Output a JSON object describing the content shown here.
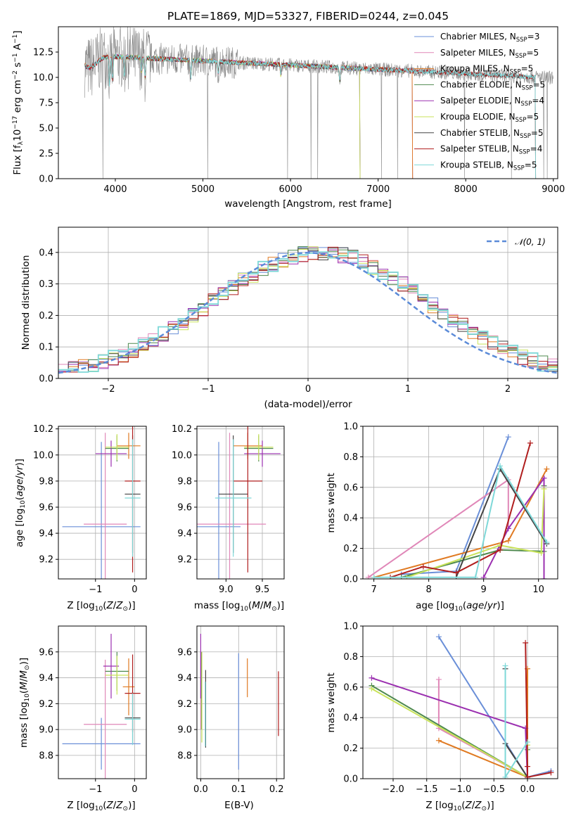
{
  "colors": {
    "Chabrier MILES": "#6a8fd8",
    "Salpeter MILES": "#e087b8",
    "Kroupa MILES": "#e07a22",
    "Chabrier ELODIE": "#4f8a4f",
    "Salpeter ELODIE": "#9b30b0",
    "Kroupa ELODIE": "#c9e35a",
    "Chabrier STELIB": "#444444",
    "Salpeter STELIB": "#b01e1e",
    "Kroupa STELIB": "#7ed8d8"
  },
  "chart_data": [
    {
      "id": "spectrum",
      "type": "line",
      "title": "PLATE=1869, MJD=53327, FIBERID=0244, z=0.045",
      "xlabel": "wavelength [Angstrom, rest frame]",
      "ylabel": "Flux [fλ10⁻¹⁷ erg cm⁻² s⁻¹ A⁻¹]",
      "xlim": [
        3350,
        9050
      ],
      "ylim": [
        0,
        15
      ],
      "xticks": [
        "4000",
        "5000",
        "6000",
        "7000",
        "8000",
        "9000"
      ],
      "yticks": [
        "0.0",
        "2.5",
        "5.0",
        "7.5",
        "10.0",
        "12.5"
      ],
      "legend_position": "upper right",
      "legend": [
        {
          "series": "Chabrier MILES",
          "text": "Chabrier MILES, N",
          "sub": "SSP",
          "suffix": "=3"
        },
        {
          "series": "Salpeter MILES",
          "text": "Salpeter MILES, N",
          "sub": "SSP",
          "suffix": "=5"
        },
        {
          "series": "Kroupa MILES",
          "text": "Kroupa MILES, N",
          "sub": "SSP",
          "suffix": "=5"
        },
        {
          "series": "Chabrier ELODIE",
          "text": "Chabrier ELODIE, N",
          "sub": "SSP",
          "suffix": "=5"
        },
        {
          "series": "Salpeter ELODIE",
          "text": "Salpeter ELODIE, N",
          "sub": "SSP",
          "suffix": "=4"
        },
        {
          "series": "Kroupa ELODIE",
          "text": "Kroupa ELODIE, N",
          "sub": "SSP",
          "suffix": "=5"
        },
        {
          "series": "Chabrier STELIB",
          "text": "Chabrier STELIB, N",
          "sub": "SSP",
          "suffix": "=5"
        },
        {
          "series": "Salpeter STELIB",
          "text": "Salpeter STELIB, N",
          "sub": "SSP",
          "suffix": "=4"
        },
        {
          "series": "Kroupa STELIB",
          "text": "Kroupa STELIB, N",
          "sub": "SSP",
          "suffix": "=5"
        }
      ],
      "data_color": "#888888",
      "data_range": [
        3650,
        9000
      ],
      "model_ranges": {
        "Chabrier MILES": [
          3650,
          7400
        ],
        "Salpeter MILES": [
          3650,
          7400
        ],
        "Kroupa MILES": [
          3650,
          7400
        ],
        "Chabrier ELODIE": [
          3890,
          6800
        ],
        "Salpeter ELODIE": [
          3890,
          6800
        ],
        "Kroupa ELODIE": [
          3890,
          6800
        ],
        "Chabrier STELIB": [
          3650,
          8800
        ],
        "Salpeter STELIB": [
          3650,
          8800
        ],
        "Kroupa STELIB": [
          3650,
          8800
        ]
      }
    },
    {
      "id": "residuals",
      "type": "histogram",
      "xlabel": "(data-model)/error",
      "ylabel": "Normed distribution",
      "xlim": [
        -2.5,
        2.5
      ],
      "ylim": [
        0,
        0.48
      ],
      "xticks": [
        "−2",
        "−1",
        "0",
        "1",
        "2"
      ],
      "yticks": [
        "0.0",
        "0.1",
        "0.2",
        "0.3",
        "0.4"
      ],
      "bin_width": 0.1,
      "grid": true,
      "legend_position": "upper right",
      "reference": {
        "label": "𝒩(0, 1)",
        "mean": 0,
        "sigma": 1,
        "color": "#5b8bd8"
      }
    },
    {
      "id": "age_vs_z",
      "type": "errorbar",
      "xlabel": "Z [log₁₀(Z/Z⊙)]",
      "ylabel": "age  [log₁₀(age/yr)]",
      "xlim": [
        -1.95,
        0.3
      ],
      "ylim": [
        9.05,
        10.22
      ],
      "xticks": [
        -1,
        0
      ],
      "yticks": [
        9.2,
        9.4,
        9.6,
        9.8,
        10.0,
        10.2
      ],
      "grid": true,
      "points": [
        {
          "series": "Chabrier MILES",
          "x": -0.85,
          "xerr": 1.0,
          "y": 9.45,
          "yerr": 0.65
        },
        {
          "series": "Salpeter MILES",
          "x": -0.75,
          "xerr": 0.55,
          "y": 9.47,
          "yerr": 0.7
        },
        {
          "series": "Kroupa MILES",
          "x": -0.15,
          "xerr": 0.3,
          "y": 10.07,
          "yerr": 0.1
        },
        {
          "series": "Chabrier ELODIE",
          "x": -0.45,
          "xerr": 0.3,
          "y": 10.05,
          "yerr": 0.1
        },
        {
          "series": "Salpeter ELODIE",
          "x": -0.6,
          "xerr": 0.4,
          "y": 10.01,
          "yerr": 0.1
        },
        {
          "series": "Kroupa ELODIE",
          "x": -0.45,
          "xerr": 0.3,
          "y": 10.06,
          "yerr": 0.1
        },
        {
          "series": "Chabrier STELIB",
          "x": -0.05,
          "xerr": 0.2,
          "y": 9.7,
          "yerr": 0.45
        },
        {
          "series": "Salpeter STELIB",
          "x": -0.05,
          "xerr": 0.2,
          "y": 9.8,
          "yerr": 0.7
        },
        {
          "series": "Kroupa STELIB",
          "x": -0.05,
          "xerr": 0.2,
          "y": 9.67,
          "yerr": 0.45
        }
      ]
    },
    {
      "id": "age_vs_mass",
      "type": "errorbar",
      "xlabel": "mass [log₁₀(M/M⊙)]",
      "ylabel": "",
      "xlim": [
        8.6,
        9.8
      ],
      "ylim": [
        9.05,
        10.22
      ],
      "xticks": [
        9.0,
        9.5
      ],
      "yticks": [
        9.2,
        9.4,
        9.6,
        9.8,
        10.0,
        10.2
      ],
      "grid": true,
      "points": [
        {
          "series": "Chabrier MILES",
          "x": 8.9,
          "xerr": 0.3,
          "y": 9.45,
          "yerr": 0.65
        },
        {
          "series": "Salpeter MILES",
          "x": 9.05,
          "xerr": 0.5,
          "y": 9.47,
          "yerr": 0.7
        },
        {
          "series": "Kroupa MILES",
          "x": 9.3,
          "xerr": 0.2,
          "y": 10.07,
          "yerr": 0.1
        },
        {
          "series": "Chabrier ELODIE",
          "x": 9.45,
          "xerr": 0.2,
          "y": 10.05,
          "yerr": 0.1
        },
        {
          "series": "Salpeter ELODIE",
          "x": 9.5,
          "xerr": 0.25,
          "y": 10.01,
          "yerr": 0.1
        },
        {
          "series": "Kroupa ELODIE",
          "x": 9.45,
          "xerr": 0.2,
          "y": 10.06,
          "yerr": 0.1
        },
        {
          "series": "Chabrier STELIB",
          "x": 9.1,
          "xerr": 0.2,
          "y": 9.7,
          "yerr": 0.45
        },
        {
          "series": "Salpeter STELIB",
          "x": 9.3,
          "xerr": 0.2,
          "y": 9.8,
          "yerr": 0.7
        },
        {
          "series": "Kroupa STELIB",
          "x": 9.1,
          "xerr": 0.25,
          "y": 9.67,
          "yerr": 0.45
        }
      ]
    },
    {
      "id": "weight_vs_age",
      "type": "line",
      "xlabel": "age  [log₁₀(age/yr)]",
      "ylabel": "mass weight",
      "xlim": [
        6.8,
        10.35
      ],
      "ylim": [
        0,
        1.0
      ],
      "xticks": [
        7,
        8,
        9,
        10
      ],
      "yticks": [
        0.0,
        0.2,
        0.4,
        0.6,
        0.8,
        1.0
      ],
      "grid": true,
      "series": [
        {
          "name": "Chabrier MILES",
          "x": [
            7.5,
            8.5,
            9.45
          ],
          "y": [
            0.03,
            0.05,
            0.93
          ]
        },
        {
          "name": "Salpeter MILES",
          "x": [
            6.9,
            9.45,
            9.45
          ],
          "y": [
            0.01,
            0.65,
            0.33
          ]
        },
        {
          "name": "Kroupa MILES",
          "x": [
            7.0,
            9.45,
            10.15
          ],
          "y": [
            0.01,
            0.25,
            0.72
          ]
        },
        {
          "name": "Chabrier ELODIE",
          "x": [
            7.5,
            9.3,
            10.1,
            10.1
          ],
          "y": [
            0.01,
            0.19,
            0.18,
            0.61
          ]
        },
        {
          "name": "Salpeter ELODIE",
          "x": [
            9.0,
            9.45,
            10.1,
            10.1
          ],
          "y": [
            0.01,
            0.33,
            0.66,
            0.0
          ]
        },
        {
          "name": "Kroupa ELODIE",
          "x": [
            7.6,
            9.3,
            10.05,
            10.1
          ],
          "y": [
            0.01,
            0.22,
            0.17,
            0.59
          ]
        },
        {
          "name": "Chabrier STELIB",
          "x": [
            8.5,
            9.3,
            10.15
          ],
          "y": [
            0.01,
            0.72,
            0.23
          ]
        },
        {
          "name": "Salpeter STELIB",
          "x": [
            7.3,
            7.9,
            8.5,
            9.3,
            9.85
          ],
          "y": [
            0.01,
            0.08,
            0.04,
            0.19,
            0.89
          ]
        },
        {
          "name": "Kroupa STELIB",
          "x": [
            7.0,
            8.85,
            9.3,
            10.15
          ],
          "y": [
            0.01,
            0.01,
            0.74,
            0.24
          ]
        }
      ]
    },
    {
      "id": "mass_vs_z",
      "type": "errorbar",
      "xlabel": "Z [log₁₀(Z/Z⊙)]",
      "ylabel": "mass [log₁₀(M/M⊙)]",
      "xlim": [
        -1.95,
        0.3
      ],
      "ylim": [
        8.62,
        9.8
      ],
      "xticks": [
        -1,
        0
      ],
      "yticks": [
        8.8,
        9.0,
        9.2,
        9.4,
        9.6
      ],
      "grid": true,
      "points": [
        {
          "series": "Chabrier MILES",
          "x": -0.85,
          "xerr": 1.0,
          "y": 8.89,
          "yerr": 0.2
        },
        {
          "series": "Salpeter MILES",
          "x": -0.75,
          "xerr": 0.55,
          "y": 9.04,
          "yerr": 0.5
        },
        {
          "series": "Kroupa MILES",
          "x": -0.15,
          "xerr": 0.15,
          "y": 9.33,
          "yerr": 0.22
        },
        {
          "series": "Chabrier ELODIE",
          "x": -0.45,
          "xerr": 0.3,
          "y": 9.45,
          "yerr": 0.15
        },
        {
          "series": "Salpeter ELODIE",
          "x": -0.6,
          "xerr": 0.2,
          "y": 9.49,
          "yerr": 0.25
        },
        {
          "series": "Kroupa ELODIE",
          "x": -0.45,
          "xerr": 0.3,
          "y": 9.42,
          "yerr": 0.15
        },
        {
          "series": "Chabrier STELIB",
          "x": -0.05,
          "xerr": 0.2,
          "y": 9.09,
          "yerr": 0.2
        },
        {
          "series": "Salpeter STELIB",
          "x": -0.05,
          "xerr": 0.2,
          "y": 9.28,
          "yerr": 0.3
        },
        {
          "series": "Kroupa STELIB",
          "x": -0.05,
          "xerr": 0.2,
          "y": 9.08,
          "yerr": 0.2
        }
      ]
    },
    {
      "id": "mass_vs_ebv",
      "type": "errorbar",
      "xlabel": "E(B-V)",
      "ylabel": "",
      "xlim": [
        -0.01,
        0.22
      ],
      "ylim": [
        8.62,
        9.8
      ],
      "xticks": [
        "0.0",
        "0.1",
        "0.2"
      ],
      "yticks": [
        8.8,
        9.0,
        9.2,
        9.4,
        9.6
      ],
      "grid": true,
      "points": [
        {
          "series": "Chabrier MILES",
          "x": 0.1,
          "xerr": 0,
          "y": 9.14,
          "yerr": 0.45
        },
        {
          "series": "Salpeter MILES",
          "x": 0.0,
          "xerr": 0,
          "y": 9.3,
          "yerr": 0.3
        },
        {
          "series": "Kroupa MILES",
          "x": 0.123,
          "xerr": 0,
          "y": 9.4,
          "yerr": 0.15
        },
        {
          "series": "Chabrier ELODIE",
          "x": 0.002,
          "xerr": 0,
          "y": 9.3,
          "yerr": 0.3
        },
        {
          "series": "Salpeter ELODIE",
          "x": 0.0,
          "xerr": 0,
          "y": 9.49,
          "yerr": 0.25
        },
        {
          "series": "Kroupa ELODIE",
          "x": 0.003,
          "xerr": 0,
          "y": 9.25,
          "yerr": 0.35
        },
        {
          "series": "Chabrier STELIB",
          "x": 0.013,
          "xerr": 0,
          "y": 9.16,
          "yerr": 0.3
        },
        {
          "series": "Salpeter STELIB",
          "x": 0.205,
          "xerr": 0,
          "y": 9.2,
          "yerr": 0.25
        },
        {
          "series": "Kroupa STELIB",
          "x": 0.012,
          "xerr": 0,
          "y": 9.12,
          "yerr": 0.25
        }
      ]
    },
    {
      "id": "weight_vs_z",
      "type": "line",
      "xlabel": "Z [log₁₀(Z/Z⊙)]",
      "ylabel": "mass weight",
      "xlim": [
        -2.45,
        0.45
      ],
      "ylim": [
        0,
        1.0
      ],
      "xticks": [
        "−2.0",
        "−1.5",
        "−1.0",
        "−0.5",
        "0.0"
      ],
      "yticks": [
        0.0,
        0.2,
        0.4,
        0.6,
        0.8,
        1.0
      ],
      "grid": true,
      "series": [
        {
          "name": "Chabrier MILES",
          "x": [
            -1.32,
            0.0,
            0.35
          ],
          "y": [
            0.93,
            0.01,
            0.05
          ]
        },
        {
          "name": "Salpeter MILES",
          "x": [
            -1.32,
            -1.32,
            0.0
          ],
          "y": [
            0.65,
            0.33,
            0.01
          ]
        },
        {
          "name": "Kroupa MILES",
          "x": [
            -1.32,
            0.0,
            0.0
          ],
          "y": [
            0.25,
            0.01,
            0.72
          ]
        },
        {
          "name": "Chabrier ELODIE",
          "x": [
            -2.32,
            0.0,
            0.0
          ],
          "y": [
            0.61,
            0.01,
            0.19
          ]
        },
        {
          "name": "Salpeter ELODIE",
          "x": [
            -2.32,
            -0.03,
            0.0
          ],
          "y": [
            0.66,
            0.33,
            0.0
          ]
        },
        {
          "name": "Kroupa ELODIE",
          "x": [
            -2.32,
            0.0,
            0.0
          ],
          "y": [
            0.59,
            0.01,
            0.22
          ]
        },
        {
          "name": "Chabrier STELIB",
          "x": [
            -0.33,
            -0.33,
            0.0
          ],
          "y": [
            0.72,
            0.23,
            0.01
          ]
        },
        {
          "name": "Salpeter STELIB",
          "x": [
            -0.03,
            0.0,
            0.0,
            0.35
          ],
          "y": [
            0.89,
            0.08,
            0.01,
            0.04
          ]
        },
        {
          "name": "Kroupa STELIB",
          "x": [
            -0.33,
            -0.33,
            0.0
          ],
          "y": [
            0.74,
            0.01,
            0.24
          ]
        }
      ]
    }
  ]
}
